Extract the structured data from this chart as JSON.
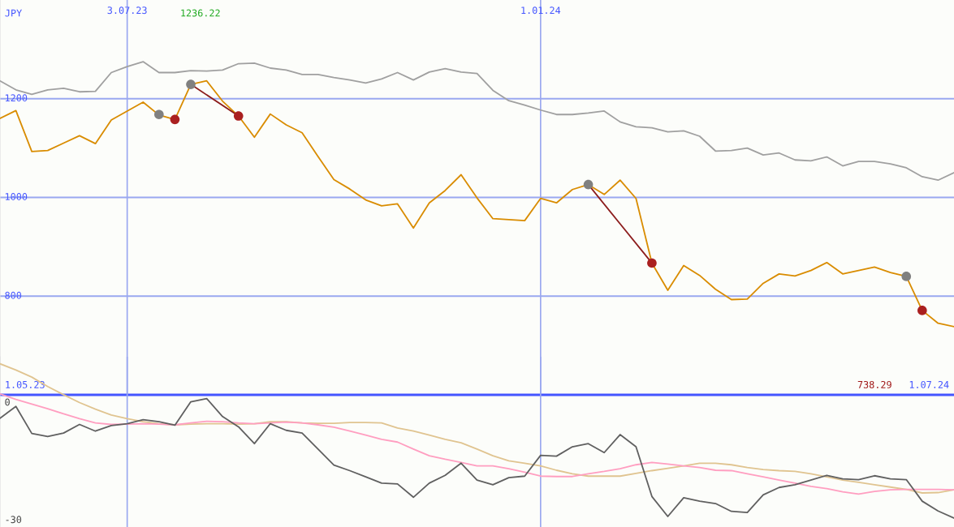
{
  "chart_data": [
    {
      "type": "line",
      "ylabel": "JPY",
      "xlim": [
        "2023-05-08",
        "2024-07-01"
      ],
      "ylim": [
        600,
        1400
      ],
      "yticks": [
        800,
        1000,
        1200
      ],
      "xticks": [
        {
          "value": "2023-07-03",
          "label": "3.07.23"
        },
        {
          "value": "2024-01-01",
          "label": "1.01.24"
        }
      ],
      "grid": true,
      "legend": false,
      "annotations": [
        "1236.22",
        "738.29",
        "1.05.23",
        "1.07.24"
      ],
      "x": [
        "2023-05-08",
        "2023-05-15",
        "2023-05-22",
        "2023-05-29",
        "2023-06-05",
        "2023-06-12",
        "2023-06-19",
        "2023-06-26",
        "2023-07-03",
        "2023-07-10",
        "2023-07-17",
        "2023-07-24",
        "2023-07-31",
        "2023-08-07",
        "2023-08-14",
        "2023-08-21",
        "2023-08-28",
        "2023-09-04",
        "2023-09-11",
        "2023-09-18",
        "2023-09-25",
        "2023-10-02",
        "2023-10-09",
        "2023-10-16",
        "2023-10-23",
        "2023-10-30",
        "2023-11-06",
        "2023-11-13",
        "2023-11-20",
        "2023-11-27",
        "2023-12-04",
        "2023-12-11",
        "2023-12-18",
        "2023-12-25",
        "2024-01-01",
        "2024-01-08",
        "2024-01-15",
        "2024-01-22",
        "2024-01-29",
        "2024-02-05",
        "2024-02-12",
        "2024-02-19",
        "2024-02-26",
        "2024-03-04",
        "2024-03-11",
        "2024-03-18",
        "2024-03-25",
        "2024-04-01",
        "2024-04-08",
        "2024-04-15",
        "2024-04-22",
        "2024-04-29",
        "2024-05-06",
        "2024-05-13",
        "2024-05-20",
        "2024-05-27",
        "2024-06-03",
        "2024-06-10",
        "2024-06-17",
        "2024-06-24",
        "2024-07-01"
      ],
      "series": [
        {
          "color": "#a0a0a0",
          "values": [
            1236,
            1218,
            1209,
            1218,
            1221,
            1214,
            1215,
            1253,
            1265,
            1275,
            1253,
            1253,
            1257,
            1256,
            1258,
            1271,
            1272,
            1262,
            1258,
            1249,
            1249,
            1243,
            1238,
            1232,
            1240,
            1253,
            1238,
            1254,
            1261,
            1254,
            1251,
            1217,
            1196,
            1187,
            1177,
            1168,
            1168,
            1171,
            1175,
            1153,
            1143,
            1141,
            1133,
            1135,
            1124,
            1094,
            1095,
            1100,
            1086,
            1090,
            1076,
            1074,
            1082,
            1064,
            1073,
            1073,
            1068,
            1060,
            1042,
            1035,
            1050
          ]
        },
        {
          "color": "#d98c00",
          "values": [
            1160,
            1176,
            1093,
            1095,
            1110,
            1125,
            1109,
            1157,
            1175,
            1193,
            1167,
            1158,
            1229,
            1236.22,
            1195,
            1165,
            1122,
            1169,
            1147,
            1131,
            1083,
            1036,
            1017,
            995,
            983,
            987,
            938,
            989,
            1014,
            1046,
            999,
            957,
            955,
            953,
            998,
            989,
            1016,
            1026,
            1006,
            1035,
            998,
            867,
            812,
            862,
            842,
            814,
            793,
            794,
            826,
            845,
            841,
            852,
            868,
            845,
            852,
            859,
            848,
            840,
            771,
            745,
            738.29
          ]
        },
        {
          "color": "#8b1a1a",
          "x": [
            "2023-07-31",
            "2023-08-21"
          ],
          "values": [
            1229,
            1165
          ]
        },
        {
          "color": "#8b1a1a",
          "x": [
            "2024-01-22",
            "2024-02-19"
          ],
          "values": [
            1026,
            867
          ]
        },
        {
          "type": "scatter",
          "marker": "circle",
          "color": "#808080",
          "x": [
            "2023-07-17",
            "2023-07-31",
            "2024-01-22",
            "2024-06-10"
          ],
          "values": [
            1168,
            1229,
            1026,
            840
          ]
        },
        {
          "type": "scatter",
          "marker": "circle",
          "color": "#aa2020",
          "x": [
            "2023-07-24",
            "2023-08-21",
            "2024-02-19",
            "2024-06-17"
          ],
          "values": [
            1158,
            1165,
            867,
            771
          ]
        }
      ]
    },
    {
      "type": "line",
      "xlim": [
        "2023-05-08",
        "2024-07-01"
      ],
      "ylim": [
        -31.7,
        11.8
      ],
      "yticks": [
        0,
        -30
      ],
      "xticks": [
        {
          "value": "2023-07-03",
          "label": null
        },
        {
          "value": "2024-01-01",
          "label": null
        }
      ],
      "grid": "x",
      "tick_labels": "y",
      "legend": false,
      "x": [
        "2023-05-08",
        "2023-05-15",
        "2023-05-22",
        "2023-05-29",
        "2023-06-05",
        "2023-06-12",
        "2023-06-19",
        "2023-06-26",
        "2023-07-03",
        "2023-07-10",
        "2023-07-17",
        "2023-07-24",
        "2023-07-31",
        "2023-08-07",
        "2023-08-14",
        "2023-08-21",
        "2023-08-28",
        "2023-09-04",
        "2023-09-11",
        "2023-09-18",
        "2023-09-25",
        "2023-10-02",
        "2023-10-09",
        "2023-10-16",
        "2023-10-23",
        "2023-10-30",
        "2023-11-06",
        "2023-11-13",
        "2023-11-20",
        "2023-11-27",
        "2023-12-04",
        "2023-12-11",
        "2023-12-18",
        "2023-12-25",
        "2024-01-01",
        "2024-01-08",
        "2024-01-15",
        "2024-01-22",
        "2024-01-29",
        "2024-02-05",
        "2024-02-12",
        "2024-02-19",
        "2024-02-26",
        "2024-03-04",
        "2024-03-11",
        "2024-03-18",
        "2024-03-25",
        "2024-04-01",
        "2024-04-08",
        "2024-04-15",
        "2024-04-22",
        "2024-04-29",
        "2024-05-06",
        "2024-05-13",
        "2024-05-20",
        "2024-05-27",
        "2024-06-03",
        "2024-06-10",
        "2024-06-17",
        "2024-06-24",
        "2024-07-01"
      ],
      "series": [
        {
          "color": "#e0c490",
          "values": [
            10.0,
            8.4,
            6.6,
            4.2,
            2.1,
            0.1,
            -1.6,
            -3.1,
            -4.0,
            -4.8,
            -5.3,
            -5.6,
            -5.4,
            -5.3,
            -5.3,
            -5.4,
            -5.3,
            -4.8,
            -4.8,
            -5.1,
            -5.2,
            -5.2,
            -5.0,
            -5.0,
            -5.1,
            -6.4,
            -7.2,
            -8.2,
            -9.3,
            -10.2,
            -11.8,
            -13.5,
            -14.8,
            -15.4,
            -16.1,
            -17.2,
            -18.1,
            -18.7,
            -18.7,
            -18.7,
            -18.0,
            -17.3,
            -16.7,
            -16.1,
            -15.4,
            -15.4,
            -15.8,
            -16.5,
            -17.0,
            -17.3,
            -17.5,
            -18.1,
            -18.9,
            -19.7,
            -20.3,
            -20.9,
            -21.5,
            -22.1,
            -23.0,
            -22.9,
            -22.2
          ]
        },
        {
          "color": "#ff9ec0",
          "values": [
            2.3,
            0.9,
            -0.3,
            -1.5,
            -2.8,
            -4.0,
            -5.1,
            -5.5,
            -5.4,
            -5.3,
            -5.4,
            -5.6,
            -5.1,
            -4.7,
            -4.8,
            -5.1,
            -5.3,
            -5.1,
            -4.9,
            -5.1,
            -5.6,
            -6.2,
            -7.2,
            -8.2,
            -9.3,
            -10.0,
            -11.8,
            -13.5,
            -14.4,
            -15.2,
            -16.1,
            -16.1,
            -16.8,
            -17.7,
            -18.7,
            -18.8,
            -18.8,
            -18.1,
            -17.5,
            -16.8,
            -15.8,
            -15.2,
            -15.6,
            -16.1,
            -16.5,
            -17.2,
            -17.3,
            -18.1,
            -18.9,
            -19.7,
            -20.5,
            -21.3,
            -21.9,
            -22.7,
            -23.3,
            -22.6,
            -22.2,
            -22.1,
            -22.1,
            -22.1,
            -22.2
          ]
        },
        {
          "color": "#606060",
          "values": [
            -3.9,
            -0.9,
            -7.8,
            -8.6,
            -7.7,
            -5.5,
            -7.2,
            -5.8,
            -5.3,
            -4.3,
            -4.8,
            -5.7,
            0.3,
            1.1,
            -3.5,
            -6.1,
            -10.4,
            -5.3,
            -7.0,
            -7.7,
            -11.8,
            -15.9,
            -17.3,
            -18.9,
            -20.5,
            -20.7,
            -24.1,
            -20.5,
            -18.5,
            -15.4,
            -19.7,
            -20.9,
            -19.1,
            -18.7,
            -13.4,
            -13.6,
            -11.2,
            -10.4,
            -12.7,
            -8.1,
            -11.2,
            -23.9,
            -29.0,
            -24.2,
            -25.1,
            -25.7,
            -27.7,
            -28.0,
            -23.5,
            -21.6,
            -20.9,
            -19.7,
            -18.5,
            -19.4,
            -19.6,
            -18.6,
            -19.4,
            -19.6,
            -25.1,
            -27.6,
            -29.4
          ]
        }
      ]
    }
  ]
}
